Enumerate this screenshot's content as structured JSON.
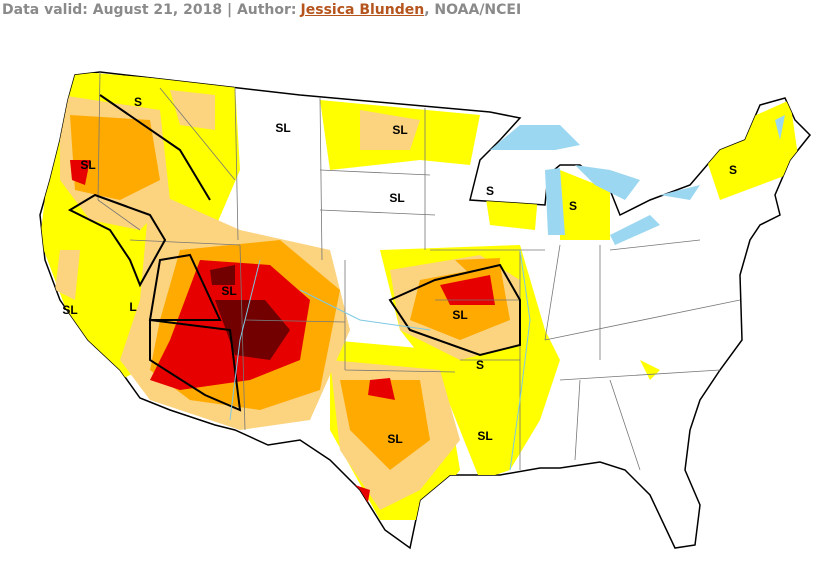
{
  "header": {
    "prefix": "Data valid: August 21, 2018 | Author:",
    "author": "Jessica Blunden",
    "suffix": ", NOAA/NCEI"
  },
  "map": {
    "labels": [
      "S",
      "SL",
      "SL",
      "SL",
      "S",
      "S",
      "SL",
      "SL",
      "L",
      "SL",
      "SL",
      "S",
      "SL",
      "SL",
      "S"
    ]
  }
}
